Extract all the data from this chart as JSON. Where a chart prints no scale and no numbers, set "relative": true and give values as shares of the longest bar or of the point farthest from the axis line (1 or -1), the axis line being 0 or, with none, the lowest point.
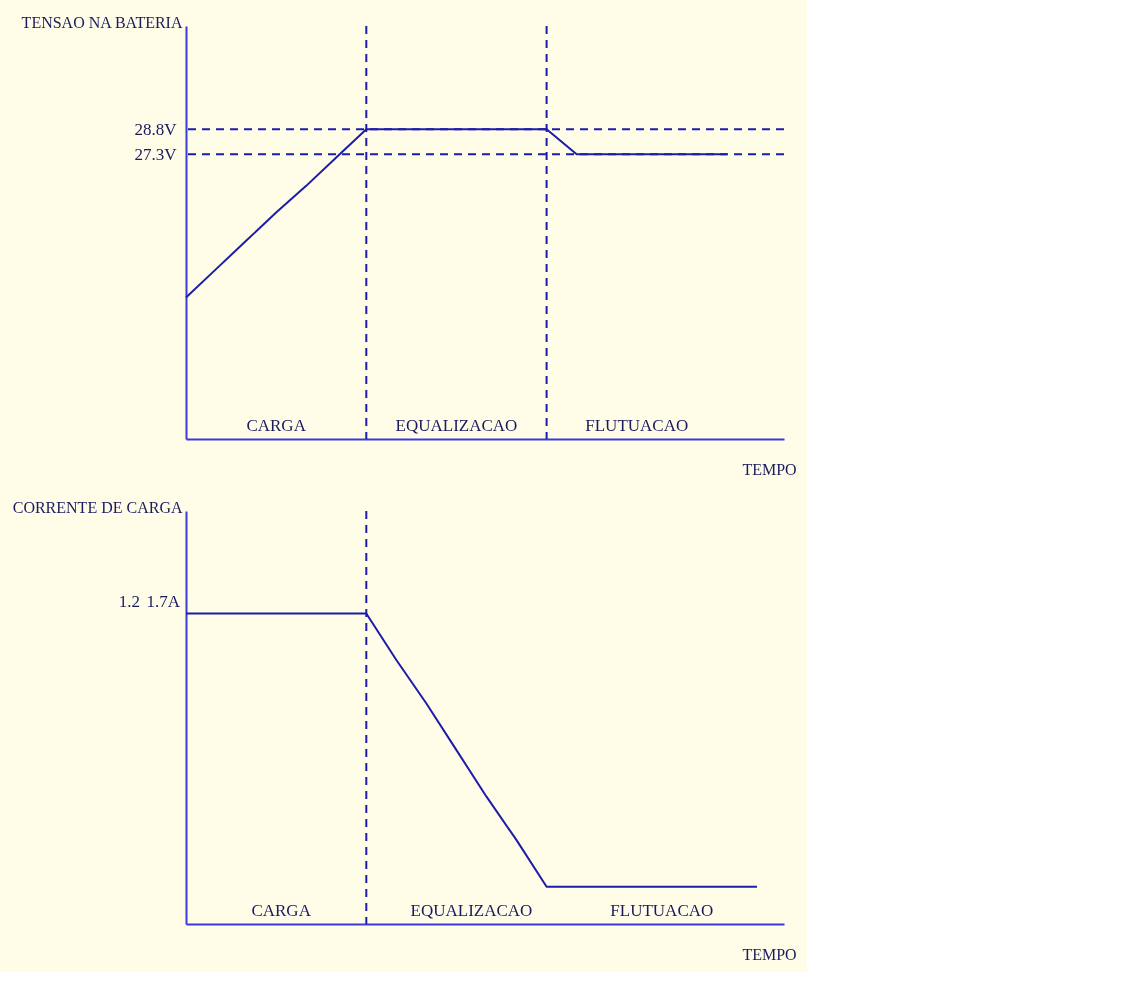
{
  "chart_data": [
    {
      "type": "line",
      "ylabel": "TENSAO NA BATERIA",
      "xlabel": "TEMPO",
      "categories": [
        null,
        null,
        null,
        null,
        null,
        null,
        null,
        null,
        null,
        null,
        null,
        null,
        null,
        null,
        null,
        null,
        null,
        null,
        null,
        null
      ],
      "series": [
        {
          "color": "#1c1caa",
          "values": [
            18.7,
            20.4,
            22.1,
            23.8,
            25.4,
            27.1,
            28.8,
            28.8,
            28.8,
            28.8,
            28.8,
            28.8,
            28.8,
            27.3,
            27.3,
            27.3,
            27.3,
            27.3,
            27.3,
            null
          ]
        }
      ],
      "ylim": [
        10.2,
        35.0
      ],
      "yticks": [
        {
          "value": 28.8,
          "label": "28.8V"
        },
        {
          "value": 27.3,
          "label": "27.3V"
        }
      ],
      "tick_labels": "y",
      "grid": false,
      "marker": "none",
      "line_style": "solid",
      "ref_lines": [
        {
          "axis": "y",
          "value": 28.8,
          "line_style": "dashed",
          "color": "#1c1caa"
        },
        {
          "axis": "y",
          "value": 27.3,
          "line_style": "dashed",
          "color": "#1c1caa"
        }
      ],
      "annotations": [
        "CARGA",
        "EQUALIZACAO",
        "FLUTUACAO"
      ]
    },
    {
      "type": "line",
      "ylabel": "CORRENTE DE CARGA",
      "xlabel": "TEMPO",
      "relative": true,
      "categories": [
        null,
        null,
        null,
        null,
        null,
        null,
        null,
        null,
        null,
        null,
        null,
        null,
        null,
        null,
        null,
        null,
        null,
        null,
        null,
        null
      ],
      "series": [
        {
          "color": "#1c1caa",
          "values": [
            1,
            1,
            1,
            1,
            1,
            1,
            1,
            0.85,
            0.71,
            0.56,
            0.41,
            0.27,
            0.12,
            0.12,
            0.12,
            0.12,
            0.12,
            0.12,
            0.12,
            0.12
          ]
        }
      ],
      "tick_labels": false,
      "grid": false,
      "marker": "none",
      "line_style": "solid",
      "annotations": [
        "1.2",
        "1.7A",
        "CARGA",
        "EQUALIZACAO",
        "FLUTUACAO"
      ]
    }
  ]
}
